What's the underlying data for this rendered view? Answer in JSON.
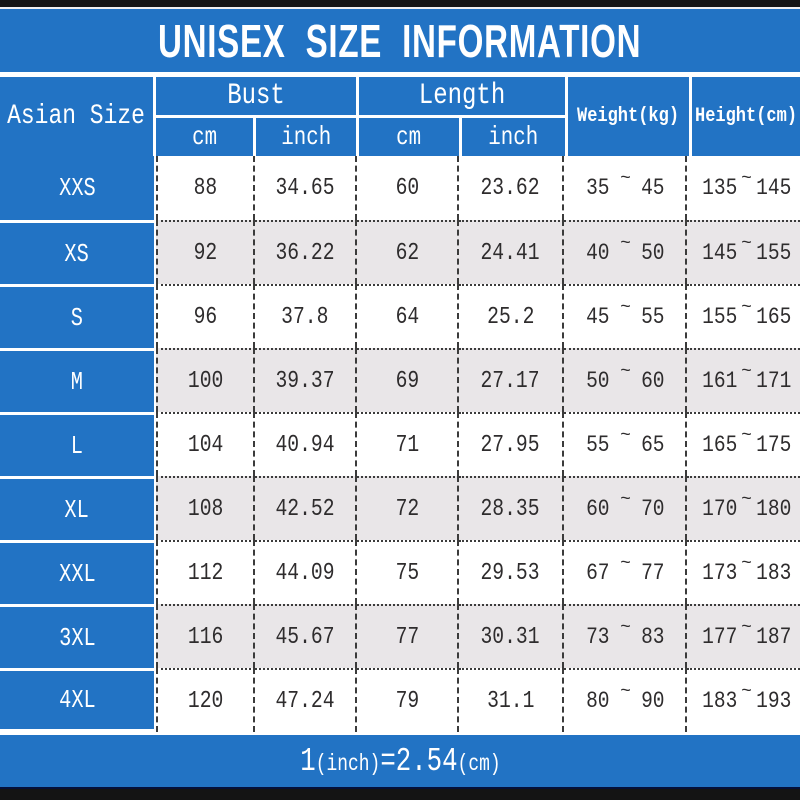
{
  "title": "UNISEX SIZE INFORMATION",
  "table": {
    "size_col_header": "Asian Size",
    "groups": [
      {
        "label": "Bust",
        "sub": [
          "cm",
          "inch"
        ]
      },
      {
        "label": "Length",
        "sub": [
          "cm",
          "inch"
        ]
      }
    ],
    "weight_header": "Weight(kg)",
    "height_header": "Height(cm)",
    "range_separator": "~",
    "rows": [
      {
        "size": "XXS",
        "bust_cm": "88",
        "bust_inch": "34.65",
        "length_cm": "60",
        "length_inch": "23.62",
        "weight": [
          "35",
          "45"
        ],
        "height": [
          "135",
          "145"
        ]
      },
      {
        "size": "XS",
        "bust_cm": "92",
        "bust_inch": "36.22",
        "length_cm": "62",
        "length_inch": "24.41",
        "weight": [
          "40",
          "50"
        ],
        "height": [
          "145",
          "155"
        ]
      },
      {
        "size": "S",
        "bust_cm": "96",
        "bust_inch": "37.8",
        "length_cm": "64",
        "length_inch": "25.2",
        "weight": [
          "45",
          "55"
        ],
        "height": [
          "155",
          "165"
        ]
      },
      {
        "size": "M",
        "bust_cm": "100",
        "bust_inch": "39.37",
        "length_cm": "69",
        "length_inch": "27.17",
        "weight": [
          "50",
          "60"
        ],
        "height": [
          "161",
          "171"
        ]
      },
      {
        "size": "L",
        "bust_cm": "104",
        "bust_inch": "40.94",
        "length_cm": "71",
        "length_inch": "27.95",
        "weight": [
          "55",
          "65"
        ],
        "height": [
          "165",
          "175"
        ]
      },
      {
        "size": "XL",
        "bust_cm": "108",
        "bust_inch": "42.52",
        "length_cm": "72",
        "length_inch": "28.35",
        "weight": [
          "60",
          "70"
        ],
        "height": [
          "170",
          "180"
        ]
      },
      {
        "size": "XXL",
        "bust_cm": "112",
        "bust_inch": "44.09",
        "length_cm": "75",
        "length_inch": "29.53",
        "weight": [
          "67",
          "77"
        ],
        "height": [
          "173",
          "183"
        ]
      },
      {
        "size": "3XL",
        "bust_cm": "116",
        "bust_inch": "45.67",
        "length_cm": "77",
        "length_inch": "30.31",
        "weight": [
          "73",
          "83"
        ],
        "height": [
          "177",
          "187"
        ]
      },
      {
        "size": "4XL",
        "bust_cm": "120",
        "bust_inch": "47.24",
        "length_cm": "79",
        "length_inch": "31.1",
        "weight": [
          "80",
          "90"
        ],
        "height": [
          "183",
          "193"
        ]
      }
    ]
  },
  "footer": {
    "parts": [
      {
        "text": "1",
        "size": "big"
      },
      {
        "text": "(inch)",
        "size": "small"
      },
      {
        "text": "=",
        "size": "big"
      },
      {
        "text": "2.54",
        "size": "big"
      },
      {
        "text": "(cm)",
        "size": "small"
      }
    ]
  },
  "colors": {
    "blue": "#2273c4",
    "row_alt": "#e9e6e8",
    "bar_dark": "#141414",
    "text_dark": "#2e2c2d",
    "border_dark": "#3b3b3b"
  }
}
